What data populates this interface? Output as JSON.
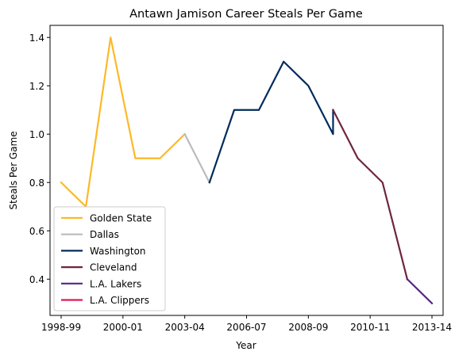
{
  "chart_data": {
    "type": "line",
    "title": "Antawn Jamison Career Steals Per Game",
    "xlabel": "Year",
    "ylabel": "Steals Per Game",
    "ylim": [
      0.25,
      1.45
    ],
    "yticks": [
      0.4,
      0.6,
      0.8,
      1.0,
      1.2,
      1.4
    ],
    "ytick_labels": [
      "0.4",
      "0.6",
      "0.8",
      "1.0",
      "1.2",
      "1.4"
    ],
    "xlim": [
      -0.45,
      15.45
    ],
    "xticks": [
      0,
      2.5,
      5,
      7.5,
      10,
      12.5,
      15
    ],
    "xtick_labels": [
      "1998-99",
      "2000-01",
      "2003-04",
      "2006-07",
      "2008-09",
      "2010-11",
      "2013-14"
    ],
    "grid": false,
    "legend_position": "lower-left",
    "series": [
      {
        "name": "Golden State",
        "color": "#FDB927",
        "points": [
          [
            0,
            0.8
          ],
          [
            1,
            0.7
          ],
          [
            2,
            1.4
          ],
          [
            3,
            0.9
          ],
          [
            4,
            0.9
          ],
          [
            5,
            1.0
          ]
        ]
      },
      {
        "name": "Dallas",
        "color": "#BBBBBB",
        "points": [
          [
            5,
            1.0
          ],
          [
            6,
            0.8
          ]
        ]
      },
      {
        "name": "Washington",
        "color": "#002B5C",
        "points": [
          [
            6,
            0.8
          ],
          [
            7,
            1.1
          ],
          [
            8,
            1.1
          ],
          [
            9,
            1.3
          ],
          [
            10,
            1.2
          ],
          [
            11,
            1.0
          ],
          [
            11,
            1.1
          ]
        ]
      },
      {
        "name": "Cleveland",
        "color": "#6F263D",
        "points": [
          [
            11,
            1.1
          ],
          [
            12,
            0.9
          ],
          [
            13,
            0.8
          ],
          [
            14,
            0.4
          ]
        ]
      },
      {
        "name": "L.A. Lakers",
        "color": "#552583",
        "points": [
          [
            14,
            0.4
          ],
          [
            15,
            0.3
          ]
        ]
      },
      {
        "name": "L.A. Clippers",
        "color": "#E2184F",
        "points": []
      }
    ]
  }
}
